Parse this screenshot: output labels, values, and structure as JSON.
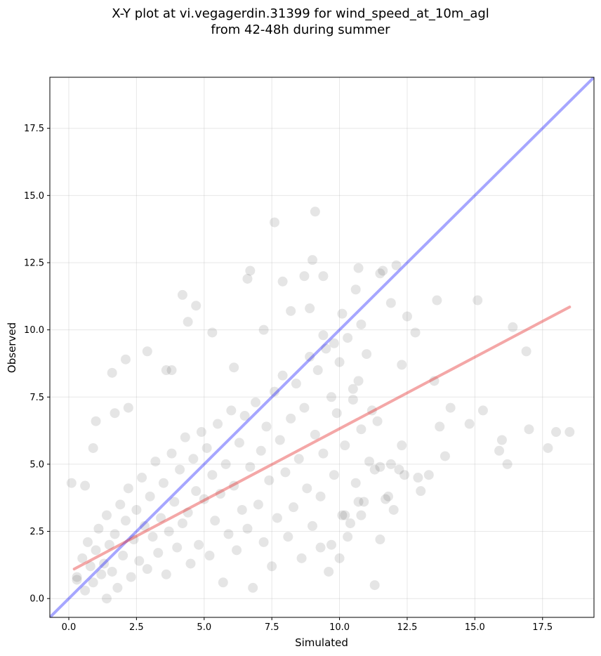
{
  "chart_data": {
    "type": "scatter",
    "title_line1": "X-Y plot at vi.vegagerdin.31399 for wind_speed_at_10m_agl",
    "title_line2": "from 42-48h during summer",
    "xlabel": "Simulated",
    "ylabel": "Observed",
    "xlim": [
      -0.7,
      19.4
    ],
    "ylim": [
      -0.7,
      19.4
    ],
    "xticks": [
      "0.0",
      "2.5",
      "5.0",
      "7.5",
      "10.0",
      "12.5",
      "15.0",
      "17.5"
    ],
    "yticks": [
      "0.0",
      "2.5",
      "5.0",
      "7.5",
      "10.0",
      "12.5",
      "15.0",
      "17.5"
    ],
    "grid": true,
    "point_color": "#000000",
    "point_alpha": 0.1,
    "series": [
      {
        "type": "scatter",
        "x": [
          9.1,
          7.6,
          9.0,
          6.7,
          7.9,
          3.6,
          10.7,
          4.2,
          6.6,
          8.9,
          9.4,
          4.4,
          11.6,
          12.1,
          13.6,
          15.1,
          16.4,
          16.9,
          17.0,
          18.0,
          18.5,
          17.7,
          16.2,
          16.0,
          15.9,
          15.3,
          14.8,
          13.7,
          13.9,
          14.1,
          13.5,
          12.2,
          12.3,
          11.9,
          12.4,
          11.5,
          10.8,
          11.7,
          10.2,
          9.7,
          10.0,
          10.3,
          10.7,
          12.3,
          12.5,
          12.8,
          13.3,
          13.0,
          12.9,
          11.5,
          11.8,
          12.0,
          11.3,
          10.5,
          10.1,
          10.8,
          9.4,
          8.7,
          9.3,
          1.4,
          0.1,
          0.6,
          0.3,
          1.0,
          0.9,
          2.1,
          1.6,
          2.9,
          3.8,
          4.7,
          5.3,
          6.1,
          7.2,
          1.7,
          2.2,
          8.2,
          10.6,
          11.5,
          9.8,
          11.9
        ],
        "y": [
          14.4,
          14.0,
          12.6,
          12.2,
          11.8,
          8.5,
          12.3,
          11.3,
          11.9,
          10.8,
          12.0,
          10.3,
          12.2,
          12.4,
          11.1,
          11.1,
          10.1,
          9.2,
          6.3,
          6.2,
          6.2,
          5.6,
          5.0,
          5.9,
          5.5,
          7.0,
          6.5,
          6.4,
          5.3,
          7.1,
          8.1,
          4.8,
          5.7,
          5.0,
          4.6,
          4.9,
          3.1,
          3.7,
          3.1,
          2.0,
          1.5,
          2.3,
          3.6,
          8.7,
          10.5,
          9.9,
          4.6,
          4.0,
          4.5,
          2.2,
          3.8,
          3.3,
          0.5,
          7.8,
          10.6,
          10.2,
          9.8,
          12.0,
          1.9,
          0.0,
          4.3,
          4.2,
          0.8,
          6.6,
          5.6,
          8.9,
          8.4,
          9.2,
          8.5,
          10.9,
          9.9,
          8.6,
          10.0,
          6.9,
          7.1,
          10.7,
          11.5,
          12.1,
          9.5,
          11.0
        ]
      },
      {
        "type": "scatter",
        "x": [
          0.3,
          0.5,
          0.6,
          0.7,
          0.8,
          0.9,
          1.0,
          1.1,
          1.2,
          1.3,
          1.4,
          1.5,
          1.6,
          1.7,
          1.8,
          1.9,
          2.0,
          2.1,
          2.2,
          2.3,
          2.4,
          2.5,
          2.6,
          2.7,
          2.8,
          2.9,
          3.0,
          3.1,
          3.2,
          3.3,
          3.4,
          3.5,
          3.6,
          3.7,
          3.8,
          3.9,
          4.0,
          4.1,
          4.2,
          4.3,
          4.4,
          4.5,
          4.6,
          4.7,
          4.8,
          4.9,
          5.0,
          5.1,
          5.2,
          5.3,
          5.4,
          5.5,
          5.6,
          5.7,
          5.8,
          5.9,
          6.0,
          6.1,
          6.2,
          6.3,
          6.4,
          6.5,
          6.6,
          6.7,
          6.8,
          6.9,
          7.0,
          7.1,
          7.2,
          7.3,
          7.4,
          7.5,
          7.6,
          7.7,
          7.8,
          7.9,
          8.0,
          8.1,
          8.2,
          8.3,
          8.4,
          8.5,
          8.6,
          8.7,
          8.8,
          8.9,
          9.0,
          9.1,
          9.2,
          9.3,
          9.4,
          9.5,
          9.6,
          9.7,
          9.8,
          9.9,
          10.0,
          10.1,
          10.2,
          10.3,
          10.4,
          10.5,
          10.6,
          10.7,
          10.8,
          10.9,
          11.0,
          11.1,
          11.2,
          11.3,
          11.4
        ],
        "y": [
          0.7,
          1.5,
          0.3,
          2.1,
          1.2,
          0.6,
          1.8,
          2.6,
          0.9,
          1.3,
          3.1,
          2.0,
          1.0,
          2.4,
          0.4,
          3.5,
          1.6,
          2.9,
          4.1,
          0.8,
          2.2,
          3.3,
          1.4,
          4.5,
          2.7,
          1.1,
          3.8,
          2.3,
          5.1,
          1.7,
          3.0,
          4.3,
          0.9,
          2.5,
          5.4,
          3.6,
          1.9,
          4.8,
          2.8,
          6.0,
          3.2,
          1.3,
          5.2,
          4.0,
          2.0,
          6.2,
          3.7,
          5.6,
          1.6,
          4.6,
          2.9,
          6.5,
          3.9,
          0.6,
          5.0,
          2.4,
          7.0,
          4.2,
          1.8,
          5.8,
          3.3,
          6.8,
          2.6,
          4.9,
          0.4,
          7.3,
          3.5,
          5.5,
          2.1,
          6.4,
          4.4,
          1.2,
          7.7,
          3.0,
          5.9,
          8.3,
          4.7,
          2.3,
          6.7,
          3.4,
          8.0,
          5.2,
          1.5,
          7.1,
          4.1,
          9.0,
          2.7,
          6.1,
          8.5,
          3.8,
          5.4,
          9.3,
          1.0,
          7.5,
          4.6,
          6.9,
          8.8,
          3.1,
          5.7,
          9.7,
          2.8,
          7.4,
          4.3,
          8.1,
          6.3,
          3.6,
          9.1,
          5.1,
          7.0,
          4.8,
          6.6
        ]
      }
    ],
    "one_to_one_line": {
      "color": "#0000ff",
      "alpha": 0.35
    },
    "fit_line": {
      "color": "#e32222",
      "alpha": 0.4,
      "x": [
        0.2,
        18.5
      ],
      "y": [
        1.1,
        10.85
      ]
    }
  }
}
